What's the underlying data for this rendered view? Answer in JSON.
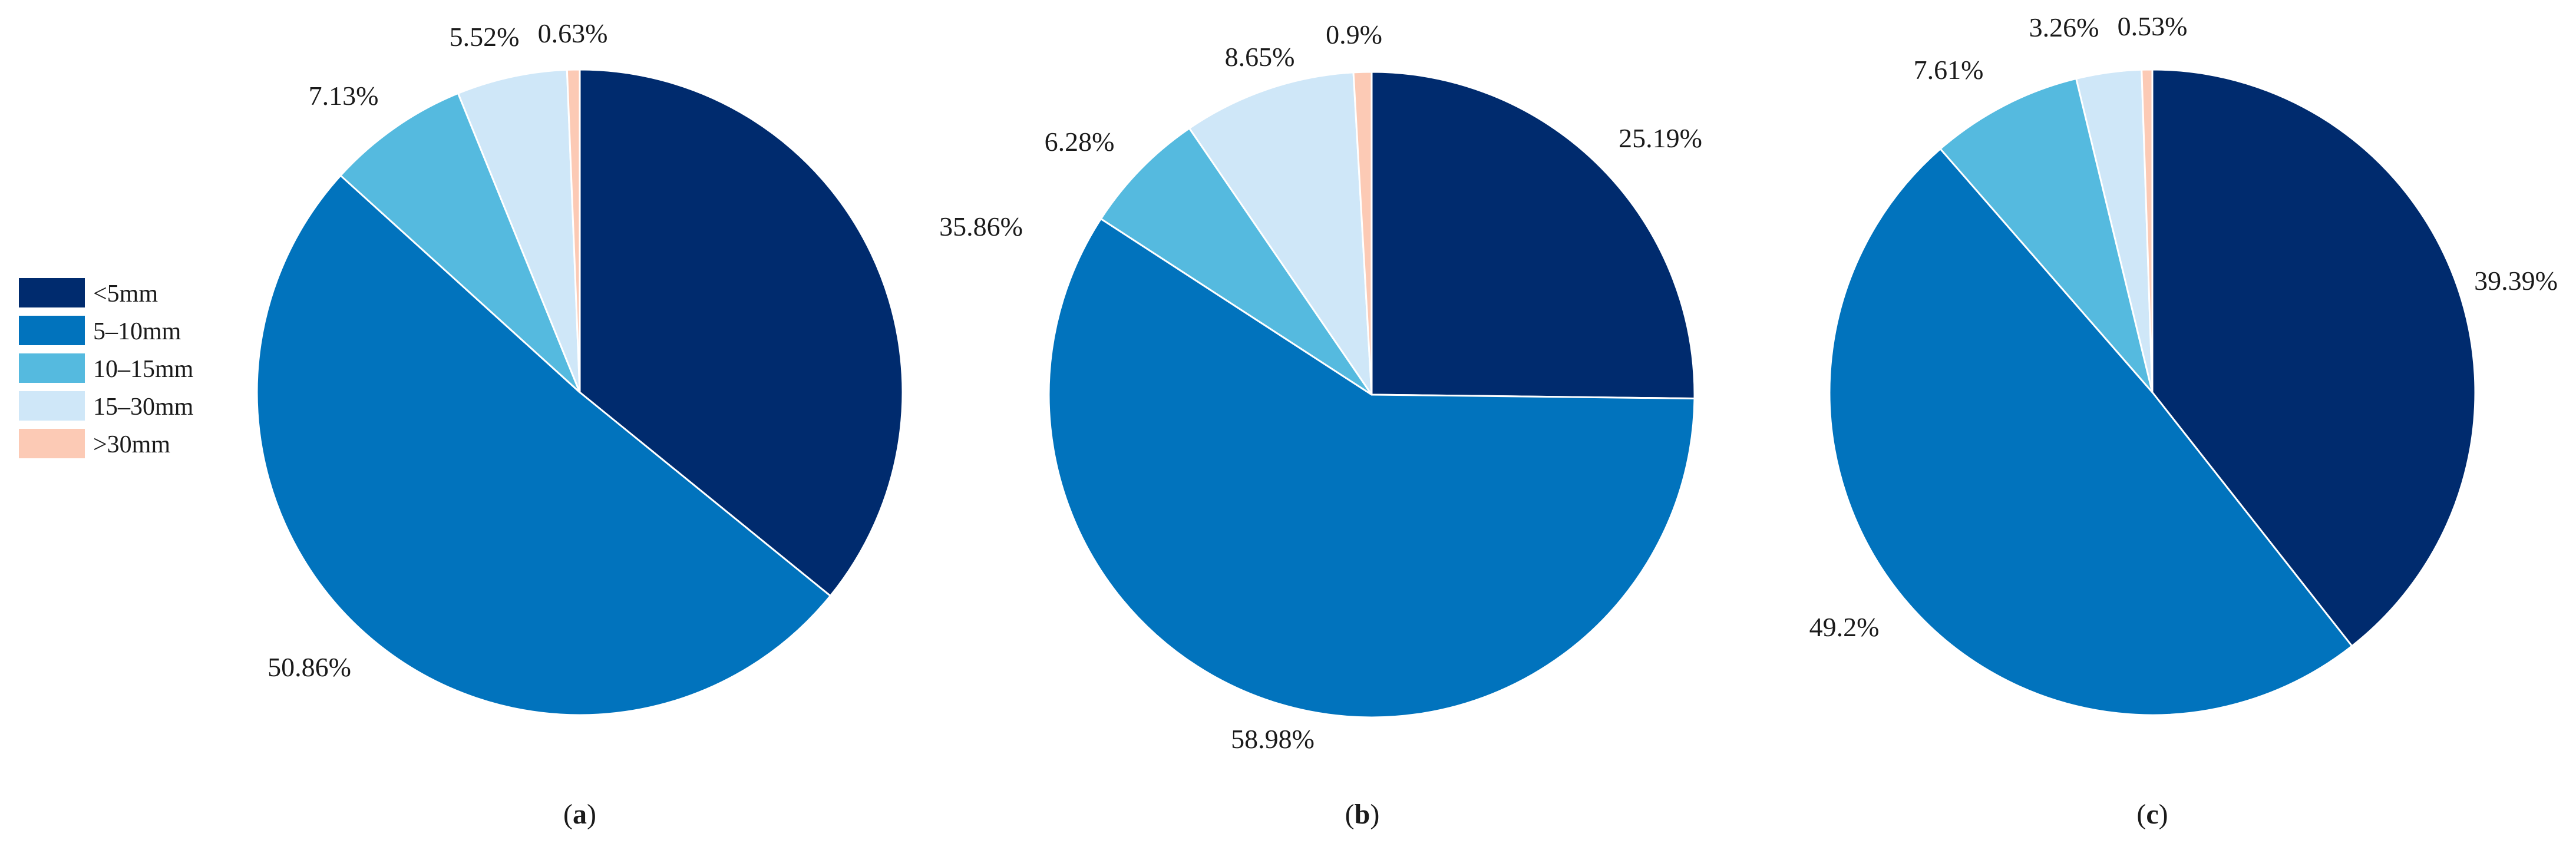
{
  "legend": {
    "items": [
      {
        "label": "<5mm",
        "color": "#002b6e"
      },
      {
        "label": "5–10mm",
        "color": "#0173bd"
      },
      {
        "label": "10–15mm",
        "color": "#55badf"
      },
      {
        "label": "15–30mm",
        "color": "#cfe7f8"
      },
      {
        "label": ">30mm",
        "color": "#fccab5"
      }
    ]
  },
  "chart_data": [
    {
      "type": "pie",
      "caption_letter": "a",
      "categories": [
        "<5mm",
        "5–10mm",
        "10–15mm",
        "15–30mm",
        ">30mm"
      ],
      "values": [
        35.86,
        50.86,
        7.13,
        5.52,
        0.63
      ],
      "labels": [
        "35.86%",
        "50.86%",
        "7.13%",
        "5.52%",
        "0.63%"
      ],
      "colors": [
        "#002b6e",
        "#0173bd",
        "#55badf",
        "#cfe7f8",
        "#fccab5"
      ],
      "start": "12 o'clock, clockwise"
    },
    {
      "type": "pie",
      "caption_letter": "b",
      "categories": [
        "<5mm",
        "5–10mm",
        "10–15mm",
        "15–30mm",
        ">30mm"
      ],
      "values": [
        25.19,
        58.98,
        6.28,
        8.65,
        0.9
      ],
      "labels": [
        "25.19%",
        "58.98%",
        "6.28%",
        "8.65%",
        "0.9%"
      ],
      "colors": [
        "#002b6e",
        "#0173bd",
        "#55badf",
        "#cfe7f8",
        "#fccab5"
      ],
      "start": "12 o'clock, clockwise"
    },
    {
      "type": "pie",
      "caption_letter": "c",
      "categories": [
        "<5mm",
        "5–10mm",
        "10–15mm",
        "15–30mm",
        ">30mm"
      ],
      "values": [
        39.39,
        49.2,
        7.61,
        3.26,
        0.53
      ],
      "labels": [
        "39.39%",
        "49.2%",
        "7.61%",
        "3.26%",
        "0.53%"
      ],
      "colors": [
        "#002b6e",
        "#0173bd",
        "#55badf",
        "#cfe7f8",
        "#fccab5"
      ],
      "start": "12 o'clock, clockwise"
    }
  ]
}
